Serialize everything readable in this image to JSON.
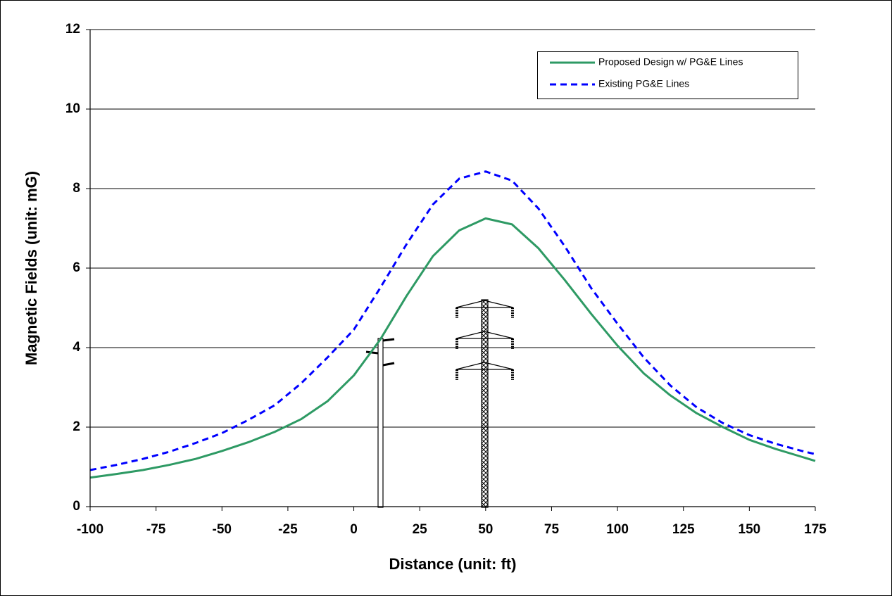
{
  "chart_data": {
    "type": "line",
    "x_label": "Distance (unit: ft)",
    "y_label": "Magnetic Fields (unit: mG)",
    "x": [
      -100,
      -90,
      -80,
      -70,
      -60,
      -50,
      -40,
      -30,
      -20,
      -10,
      0,
      10,
      20,
      30,
      40,
      50,
      60,
      70,
      80,
      90,
      100,
      110,
      120,
      130,
      140,
      150,
      160,
      170,
      175
    ],
    "series": [
      {
        "name": "Proposed Design w/ PG&E Lines",
        "color": "#2e9a64",
        "dash": false,
        "values": [
          0.73,
          0.82,
          0.92,
          1.05,
          1.2,
          1.4,
          1.62,
          1.88,
          2.2,
          2.65,
          3.3,
          4.2,
          5.3,
          6.3,
          6.95,
          7.25,
          7.1,
          6.5,
          5.7,
          4.85,
          4.05,
          3.35,
          2.8,
          2.35,
          2.0,
          1.68,
          1.45,
          1.25,
          1.15
        ]
      },
      {
        "name": "Existing PG&E Lines",
        "color": "#0000ff",
        "dash": true,
        "values": [
          0.92,
          1.05,
          1.2,
          1.38,
          1.6,
          1.85,
          2.18,
          2.55,
          3.1,
          3.75,
          4.45,
          5.5,
          6.6,
          7.6,
          8.25,
          8.43,
          8.2,
          7.5,
          6.55,
          5.5,
          4.6,
          3.75,
          3.05,
          2.5,
          2.1,
          1.8,
          1.58,
          1.4,
          1.32
        ]
      }
    ],
    "xlim": [
      -100,
      175
    ],
    "xticks": [
      -100,
      -75,
      -50,
      -25,
      0,
      25,
      50,
      75,
      100,
      125,
      150,
      175
    ],
    "ylim": [
      0,
      12
    ],
    "yticks": [
      0,
      2,
      4,
      6,
      8,
      10,
      12
    ],
    "grid": true
  }
}
